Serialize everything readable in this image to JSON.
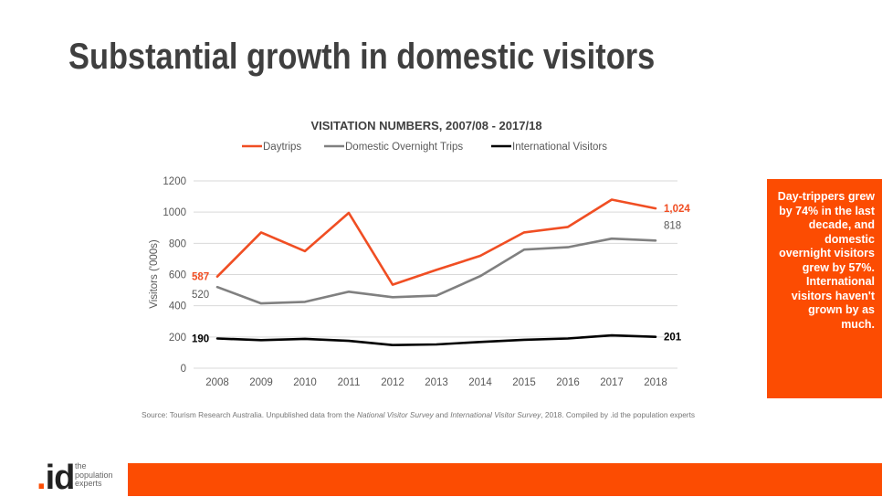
{
  "slide": {
    "title": "Substantial growth in domestic visitors",
    "callout": "Day-trippers grew by 74% in the last decade, and domestic overnight visitors grew by 57%. International visitors haven't grown by as much.",
    "source": {
      "prefix": "Source: Tourism Research Australia. Unpublished data from the ",
      "survey1": "National Visitor Survey",
      "and": " and ",
      "survey2": "International Visitor Survey",
      "suffix": ", 2018. Compiled by .id the population experts"
    },
    "logo": {
      "mark": "id",
      "dot": ".",
      "line1": "the",
      "line2": "population",
      "line3": "experts"
    }
  },
  "colors": {
    "accent": "#fc4c02",
    "daytrips": "#f04e23",
    "domestic": "#808080",
    "international": "#000000",
    "grid": "#d9d9d9",
    "text": "#595959"
  },
  "chart_data": {
    "type": "line",
    "title": "VISITATION NUMBERS, 2007/08 - 2017/18",
    "ylabel": "Visitors ('000s)",
    "xlabel": "",
    "ylim": [
      0,
      1200
    ],
    "yticks": [
      0,
      200,
      400,
      600,
      800,
      1000,
      1200
    ],
    "x": [
      2008,
      2009,
      2010,
      2011,
      2012,
      2013,
      2014,
      2015,
      2016,
      2017,
      2018
    ],
    "legend": "top",
    "grid": true,
    "series": [
      {
        "name": "Daytrips",
        "key": "daytrips",
        "values": [
          587,
          870,
          750,
          995,
          535,
          630,
          720,
          870,
          905,
          1080,
          1024
        ],
        "labels": [
          {
            "index": 0,
            "text": "587"
          },
          {
            "index": 10,
            "text": "1,024"
          }
        ]
      },
      {
        "name": "Domestic Overnight Trips",
        "key": "domestic",
        "values": [
          520,
          415,
          425,
          490,
          455,
          465,
          590,
          760,
          775,
          830,
          818
        ],
        "labels": [
          {
            "index": 0,
            "text": "520"
          },
          {
            "index": 10,
            "text": "818"
          }
        ]
      },
      {
        "name": "International Visitors",
        "key": "international",
        "values": [
          190,
          180,
          188,
          175,
          148,
          152,
          168,
          182,
          190,
          210,
          201
        ],
        "labels": [
          {
            "index": 0,
            "text": "190"
          },
          {
            "index": 10,
            "text": "201"
          }
        ]
      }
    ]
  }
}
